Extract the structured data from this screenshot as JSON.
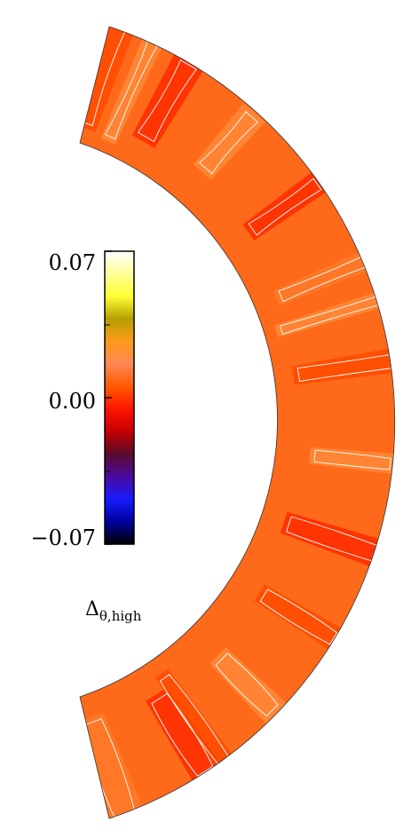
{
  "colorbar": {
    "max_label": "0.07",
    "mid_label": "0.00",
    "min_label": "−0.07",
    "title_main": "Δ",
    "title_sub": "θ,high",
    "max_value": 0.07,
    "min_value": -0.07,
    "colors_top_to_bottom": [
      "#ffffff",
      "#ffff99",
      "#ffff33",
      "#b5a000",
      "#ff9a1a",
      "#ff8855",
      "#ff5a00",
      "#ff1500",
      "#c40000",
      "#5a0a2a",
      "#4a0aa0",
      "#1a1aff",
      "#0000a0",
      "#000000"
    ]
  },
  "field": {
    "base_color": "#ff6a1a",
    "band_colors": [
      "#ff4a00",
      "#ff2a00",
      "#ff8a3a",
      "#ff7a2a"
    ],
    "contour_color": "#ffffff"
  }
}
